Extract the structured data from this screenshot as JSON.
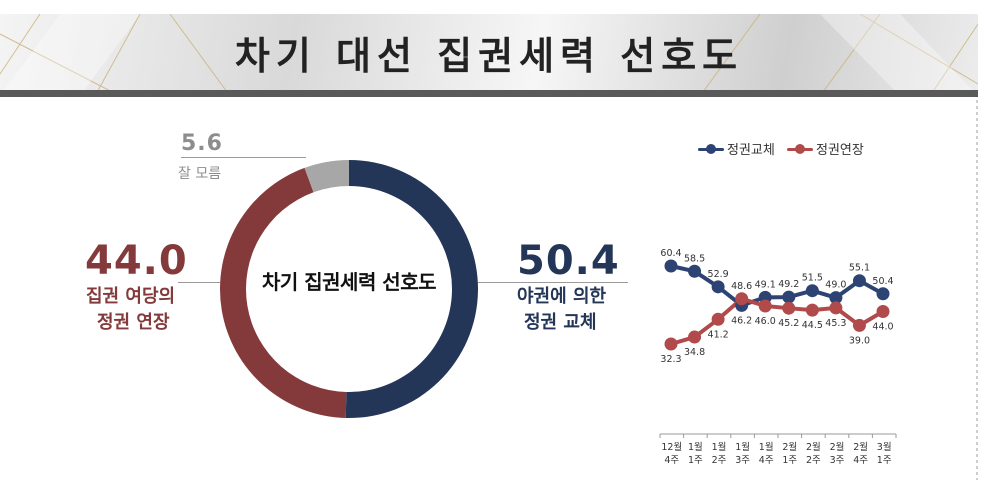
{
  "title": "차기 대선 집권세력 선호도",
  "donut": {
    "center_label": "차기 집권세력 선호도",
    "slices": [
      {
        "name_line1": "야권에 의한",
        "name_line2": "정권 교체",
        "value": 50.4,
        "value_label": "50.4",
        "color": "#243657"
      },
      {
        "name_line1": "집권 여당의",
        "name_line2": "정권 연장",
        "value": 44.0,
        "value_label": "44.0",
        "color": "#843a3a"
      },
      {
        "name_line1": "잘 모름",
        "name_line2": "",
        "value": 5.6,
        "value_label": "5.6",
        "color": "#a7a7a7"
      }
    ]
  },
  "chart_data": [
    {
      "type": "pie",
      "title": "차기 집권세력 선호도",
      "categories": [
        "야권에 의한 정권 교체",
        "집권 여당의 정권 연장",
        "잘 모름"
      ],
      "values": [
        50.4,
        44.0,
        5.6
      ]
    },
    {
      "type": "line",
      "categories": [
        "12월 4주",
        "1월 1주",
        "1월 2주",
        "1월 3주",
        "1월 4주",
        "2월 1주",
        "2월 2주",
        "2월 3주",
        "2월 4주",
        "3월 1주"
      ],
      "x_labels": [
        [
          "12월",
          "4주"
        ],
        [
          "1월",
          "1주"
        ],
        [
          "1월",
          "2주"
        ],
        [
          "1월",
          "3주"
        ],
        [
          "1월",
          "4주"
        ],
        [
          "2월",
          "1주"
        ],
        [
          "2월",
          "2주"
        ],
        [
          "2월",
          "3주"
        ],
        [
          "2월",
          "4주"
        ],
        [
          "3월",
          "1주"
        ]
      ],
      "series": [
        {
          "name": "정권교체",
          "color": "#2d4373",
          "values": [
            60.4,
            58.5,
            52.9,
            46.2,
            49.1,
            49.2,
            51.5,
            49.0,
            55.1,
            50.4
          ],
          "labels": [
            "60.4",
            "58.5",
            "52.9",
            "46.2",
            "49.1",
            "49.2",
            "51.5",
            "49.0",
            "55.1",
            "50.4"
          ]
        },
        {
          "name": "정권연장",
          "color": "#b14a4a",
          "values": [
            32.3,
            34.8,
            41.2,
            48.6,
            46.0,
            45.2,
            44.5,
            45.3,
            39.0,
            44.0
          ],
          "labels": [
            "32.3",
            "34.8",
            "41.2",
            "48.6",
            "46.0",
            "45.2",
            "44.5",
            "45.3",
            "39.0",
            "44.0"
          ]
        }
      ],
      "legend_position": "top",
      "grid": false
    }
  ]
}
